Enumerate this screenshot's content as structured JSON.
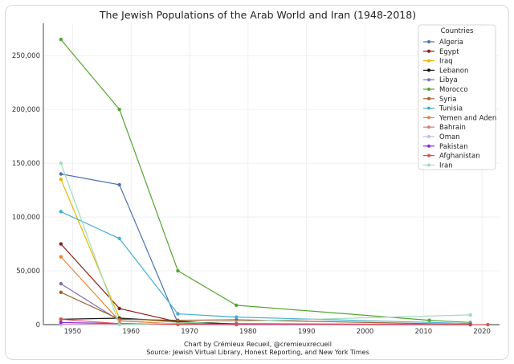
{
  "chart_data": {
    "type": "line",
    "title": "The Jewish Populations of the Arab World and Iran (1948-2018)",
    "xlabel": "",
    "ylabel": "",
    "xlim": [
      1945,
      2023
    ],
    "ylim": [
      0,
      280000
    ],
    "x_ticks": [
      1950,
      1960,
      1970,
      1980,
      1990,
      2000,
      2010,
      2020
    ],
    "y_ticks": [
      0,
      50000,
      100000,
      150000,
      200000,
      250000
    ],
    "grid": true,
    "legend_title": "Countries",
    "legend_position": "top-right",
    "series": [
      {
        "name": "Algeria",
        "color": "#4c72b0",
        "points": [
          [
            1948,
            140000
          ],
          [
            1958,
            130000
          ],
          [
            1968,
            1500
          ],
          [
            1978,
            1000
          ],
          [
            2018,
            100
          ]
        ]
      },
      {
        "name": "Egypt",
        "color": "#8c1c13",
        "points": [
          [
            1948,
            75000
          ],
          [
            1958,
            15000
          ],
          [
            1968,
            2500
          ],
          [
            1978,
            400
          ],
          [
            2018,
            50
          ]
        ]
      },
      {
        "name": "Iraq",
        "color": "#e6b800",
        "points": [
          [
            1948,
            135000
          ],
          [
            1958,
            6000
          ],
          [
            1968,
            2500
          ],
          [
            1978,
            350
          ],
          [
            2018,
            5
          ]
        ]
      },
      {
        "name": "Lebanon",
        "color": "#111111",
        "points": [
          [
            1948,
            5000
          ],
          [
            1958,
            6000
          ],
          [
            1968,
            3000
          ],
          [
            1978,
            400
          ],
          [
            2018,
            100
          ]
        ]
      },
      {
        "name": "Libya",
        "color": "#8172b2",
        "points": [
          [
            1948,
            38000
          ],
          [
            1958,
            3750
          ],
          [
            1968,
            500
          ],
          [
            1978,
            50
          ],
          [
            2018,
            0
          ]
        ]
      },
      {
        "name": "Morocco",
        "color": "#55a630",
        "points": [
          [
            1948,
            265000
          ],
          [
            1958,
            200000
          ],
          [
            1968,
            50000
          ],
          [
            1978,
            18000
          ],
          [
            2011,
            4000
          ],
          [
            2018,
            2000
          ]
        ]
      },
      {
        "name": "Syria",
        "color": "#a0642c",
        "points": [
          [
            1948,
            30000
          ],
          [
            1958,
            5000
          ],
          [
            1968,
            4000
          ],
          [
            1978,
            4500
          ],
          [
            2018,
            100
          ]
        ]
      },
      {
        "name": "Tunisia",
        "color": "#45afd0",
        "points": [
          [
            1948,
            105000
          ],
          [
            1958,
            80000
          ],
          [
            1968,
            10000
          ],
          [
            1978,
            7000
          ],
          [
            2018,
            1000
          ]
        ]
      },
      {
        "name": "Yemen and Aden",
        "color": "#e8852f",
        "points": [
          [
            1948,
            63000
          ],
          [
            1958,
            3500
          ],
          [
            1968,
            500
          ],
          [
            1978,
            500
          ],
          [
            2018,
            50
          ]
        ]
      },
      {
        "name": "Bahrain",
        "color": "#e07b7b",
        "points": [
          [
            1948,
            550
          ],
          [
            1958,
            500
          ],
          [
            1968,
            200
          ],
          [
            1978,
            100
          ],
          [
            2018,
            50
          ]
        ]
      },
      {
        "name": "Oman",
        "color": "#c9b8e0",
        "points": [
          [
            1948,
            0
          ],
          [
            1958,
            0
          ],
          [
            1968,
            0
          ],
          [
            1978,
            0
          ],
          [
            2018,
            0
          ]
        ]
      },
      {
        "name": "Pakistan",
        "color": "#8a2be2",
        "points": [
          [
            1948,
            2000
          ],
          [
            1958,
            1000
          ],
          [
            1968,
            500
          ],
          [
            1978,
            300
          ],
          [
            2018,
            0
          ]
        ]
      },
      {
        "name": "Afghanistan",
        "color": "#d9534f",
        "points": [
          [
            1948,
            5000
          ],
          [
            1958,
            800
          ],
          [
            1968,
            300
          ],
          [
            1978,
            50
          ],
          [
            2021,
            0
          ]
        ]
      },
      {
        "name": "Iran",
        "color": "#9fdcc0",
        "points": [
          [
            1948,
            150000
          ],
          [
            1958,
            0
          ],
          [
            2018,
            9000
          ]
        ]
      }
    ],
    "credit_line1": "Chart by Crémieux Recueil, @cremieuxrecueil",
    "credit_line2": "Source: Jewish Virtual Library, Honest Reporting, and New York Times"
  }
}
